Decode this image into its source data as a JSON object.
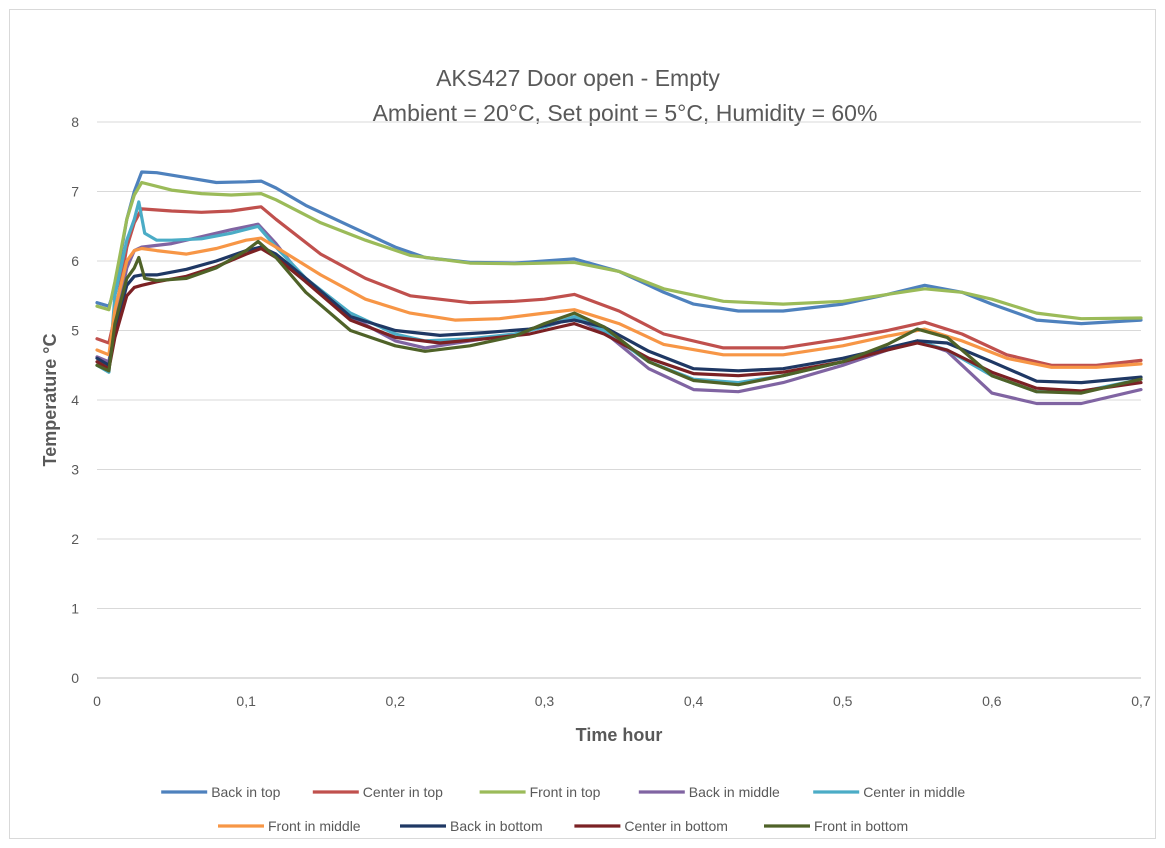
{
  "chart_data": {
    "type": "line",
    "title": "AKS427 Door open - Empty",
    "subtitle": "Ambient = 20°C, Set point = 5°C, Humidity = 60%",
    "xlabel": "Time hour",
    "ylabel": "Temperature °C",
    "xlim": [
      0,
      0.7
    ],
    "ylim": [
      0,
      8
    ],
    "x_ticks": [
      "0",
      "0,1",
      "0,2",
      "0,3",
      "0,4",
      "0,5",
      "0,6",
      "0,7"
    ],
    "y_ticks": [
      "0",
      "1",
      "2",
      "3",
      "4",
      "5",
      "6",
      "7",
      "8"
    ],
    "grid": "horizontal",
    "legend_position": "bottom",
    "series": [
      {
        "name": "Back in top",
        "color": "#4e81bd",
        "x": [
          0,
          0.008,
          0.012,
          0.02,
          0.025,
          0.03,
          0.04,
          0.06,
          0.08,
          0.1,
          0.11,
          0.12,
          0.14,
          0.17,
          0.2,
          0.22,
          0.25,
          0.28,
          0.3,
          0.32,
          0.35,
          0.38,
          0.4,
          0.43,
          0.46,
          0.5,
          0.53,
          0.555,
          0.58,
          0.6,
          0.63,
          0.66,
          0.7
        ],
        "y": [
          5.4,
          5.35,
          5.6,
          6.6,
          7.0,
          7.28,
          7.27,
          7.2,
          7.13,
          7.14,
          7.15,
          7.05,
          6.8,
          6.5,
          6.2,
          6.05,
          5.98,
          5.97,
          6.0,
          6.03,
          5.85,
          5.55,
          5.38,
          5.28,
          5.28,
          5.38,
          5.52,
          5.65,
          5.55,
          5.38,
          5.15,
          5.1,
          5.15
        ]
      },
      {
        "name": "Center in top",
        "color": "#c0504d",
        "x": [
          0,
          0.008,
          0.012,
          0.02,
          0.025,
          0.03,
          0.05,
          0.07,
          0.09,
          0.11,
          0.12,
          0.15,
          0.18,
          0.21,
          0.25,
          0.28,
          0.3,
          0.32,
          0.35,
          0.38,
          0.42,
          0.46,
          0.5,
          0.53,
          0.555,
          0.58,
          0.61,
          0.64,
          0.67,
          0.7
        ],
        "y": [
          4.88,
          4.82,
          5.2,
          6.2,
          6.55,
          6.75,
          6.72,
          6.7,
          6.72,
          6.78,
          6.6,
          6.1,
          5.75,
          5.5,
          5.4,
          5.42,
          5.45,
          5.52,
          5.28,
          4.95,
          4.75,
          4.75,
          4.88,
          5.0,
          5.12,
          4.95,
          4.65,
          4.5,
          4.5,
          4.57
        ]
      },
      {
        "name": "Front in top",
        "color": "#9bbb59",
        "x": [
          0,
          0.008,
          0.012,
          0.02,
          0.025,
          0.03,
          0.05,
          0.07,
          0.09,
          0.11,
          0.12,
          0.15,
          0.18,
          0.21,
          0.25,
          0.28,
          0.3,
          0.32,
          0.35,
          0.38,
          0.42,
          0.46,
          0.5,
          0.53,
          0.555,
          0.58,
          0.6,
          0.63,
          0.66,
          0.7
        ],
        "y": [
          5.35,
          5.3,
          5.7,
          6.6,
          6.95,
          7.13,
          7.02,
          6.97,
          6.95,
          6.97,
          6.88,
          6.55,
          6.3,
          6.08,
          5.97,
          5.96,
          5.97,
          5.98,
          5.85,
          5.6,
          5.42,
          5.38,
          5.42,
          5.52,
          5.6,
          5.55,
          5.45,
          5.25,
          5.17,
          5.18
        ]
      },
      {
        "name": "Back in middle",
        "color": "#8064a2",
        "x": [
          0,
          0.008,
          0.012,
          0.02,
          0.025,
          0.03,
          0.05,
          0.07,
          0.09,
          0.108,
          0.12,
          0.14,
          0.17,
          0.2,
          0.22,
          0.25,
          0.28,
          0.3,
          0.32,
          0.34,
          0.37,
          0.4,
          0.43,
          0.46,
          0.5,
          0.53,
          0.55,
          0.57,
          0.6,
          0.63,
          0.66,
          0.7
        ],
        "y": [
          4.62,
          4.55,
          5.1,
          5.9,
          6.15,
          6.2,
          6.25,
          6.35,
          6.45,
          6.53,
          6.25,
          5.7,
          5.2,
          4.85,
          4.75,
          4.85,
          4.95,
          5.05,
          5.18,
          4.98,
          4.45,
          4.15,
          4.12,
          4.25,
          4.5,
          4.72,
          4.85,
          4.7,
          4.1,
          3.95,
          3.95,
          4.15
        ]
      },
      {
        "name": "Center in middle",
        "color": "#4bacc6",
        "x": [
          0,
          0.008,
          0.012,
          0.02,
          0.025,
          0.028,
          0.032,
          0.04,
          0.05,
          0.07,
          0.09,
          0.108,
          0.12,
          0.14,
          0.17,
          0.2,
          0.22,
          0.25,
          0.28,
          0.3,
          0.32,
          0.34,
          0.37,
          0.4,
          0.43,
          0.46,
          0.5,
          0.53,
          0.55,
          0.57,
          0.6,
          0.63,
          0.66,
          0.7
        ],
        "y": [
          4.5,
          4.4,
          5.5,
          6.3,
          6.6,
          6.85,
          6.4,
          6.3,
          6.3,
          6.32,
          6.4,
          6.5,
          6.2,
          5.75,
          5.25,
          4.95,
          4.85,
          4.88,
          4.95,
          5.05,
          5.2,
          5.0,
          4.55,
          4.3,
          4.25,
          4.35,
          4.55,
          4.72,
          4.85,
          4.72,
          4.35,
          4.12,
          4.12,
          4.3
        ]
      },
      {
        "name": "Front in middle",
        "color": "#f79646",
        "x": [
          0,
          0.008,
          0.012,
          0.02,
          0.025,
          0.03,
          0.04,
          0.06,
          0.08,
          0.1,
          0.11,
          0.12,
          0.15,
          0.18,
          0.21,
          0.24,
          0.27,
          0.3,
          0.32,
          0.35,
          0.38,
          0.42,
          0.46,
          0.5,
          0.53,
          0.555,
          0.58,
          0.61,
          0.64,
          0.67,
          0.7
        ],
        "y": [
          4.72,
          4.65,
          5.3,
          6.0,
          6.15,
          6.18,
          6.15,
          6.1,
          6.18,
          6.3,
          6.33,
          6.2,
          5.8,
          5.45,
          5.25,
          5.15,
          5.17,
          5.25,
          5.3,
          5.1,
          4.8,
          4.65,
          4.65,
          4.78,
          4.92,
          5.02,
          4.85,
          4.6,
          4.47,
          4.47,
          4.52
        ]
      },
      {
        "name": "Back in bottom",
        "color": "#1f3864",
        "x": [
          0,
          0.008,
          0.012,
          0.02,
          0.025,
          0.03,
          0.04,
          0.06,
          0.08,
          0.1,
          0.11,
          0.12,
          0.14,
          0.17,
          0.2,
          0.23,
          0.26,
          0.29,
          0.31,
          0.32,
          0.34,
          0.37,
          0.4,
          0.43,
          0.46,
          0.5,
          0.53,
          0.55,
          0.57,
          0.6,
          0.63,
          0.66,
          0.7
        ],
        "y": [
          4.6,
          4.5,
          5.0,
          5.65,
          5.78,
          5.8,
          5.8,
          5.88,
          6.0,
          6.15,
          6.2,
          6.1,
          5.75,
          5.2,
          5.0,
          4.93,
          4.97,
          5.02,
          5.12,
          5.15,
          5.05,
          4.7,
          4.45,
          4.42,
          4.45,
          4.6,
          4.75,
          4.85,
          4.82,
          4.55,
          4.27,
          4.25,
          4.33
        ]
      },
      {
        "name": "Center in bottom",
        "color": "#7b2124",
        "x": [
          0,
          0.008,
          0.012,
          0.02,
          0.025,
          0.03,
          0.04,
          0.06,
          0.08,
          0.1,
          0.11,
          0.12,
          0.14,
          0.17,
          0.2,
          0.23,
          0.26,
          0.29,
          0.31,
          0.32,
          0.34,
          0.37,
          0.4,
          0.43,
          0.46,
          0.5,
          0.53,
          0.55,
          0.57,
          0.6,
          0.63,
          0.66,
          0.7
        ],
        "y": [
          4.55,
          4.45,
          4.9,
          5.5,
          5.62,
          5.65,
          5.7,
          5.78,
          5.92,
          6.1,
          6.18,
          6.05,
          5.7,
          5.15,
          4.9,
          4.82,
          4.88,
          4.95,
          5.05,
          5.1,
          4.95,
          4.6,
          4.38,
          4.35,
          4.4,
          4.55,
          4.72,
          4.82,
          4.72,
          4.4,
          4.17,
          4.13,
          4.25
        ]
      },
      {
        "name": "Front in bottom",
        "color": "#4f6228",
        "x": [
          0,
          0.008,
          0.012,
          0.02,
          0.025,
          0.028,
          0.032,
          0.04,
          0.06,
          0.08,
          0.1,
          0.108,
          0.12,
          0.14,
          0.17,
          0.2,
          0.22,
          0.25,
          0.28,
          0.3,
          0.32,
          0.34,
          0.37,
          0.4,
          0.43,
          0.46,
          0.5,
          0.53,
          0.55,
          0.57,
          0.6,
          0.63,
          0.66,
          0.7
        ],
        "y": [
          4.5,
          4.42,
          5.1,
          5.75,
          5.9,
          6.05,
          5.75,
          5.72,
          5.75,
          5.9,
          6.15,
          6.28,
          6.05,
          5.55,
          5.0,
          4.78,
          4.7,
          4.78,
          4.92,
          5.1,
          5.25,
          5.05,
          4.55,
          4.28,
          4.22,
          4.35,
          4.55,
          4.8,
          5.02,
          4.9,
          4.35,
          4.12,
          4.1,
          4.3
        ]
      }
    ]
  }
}
